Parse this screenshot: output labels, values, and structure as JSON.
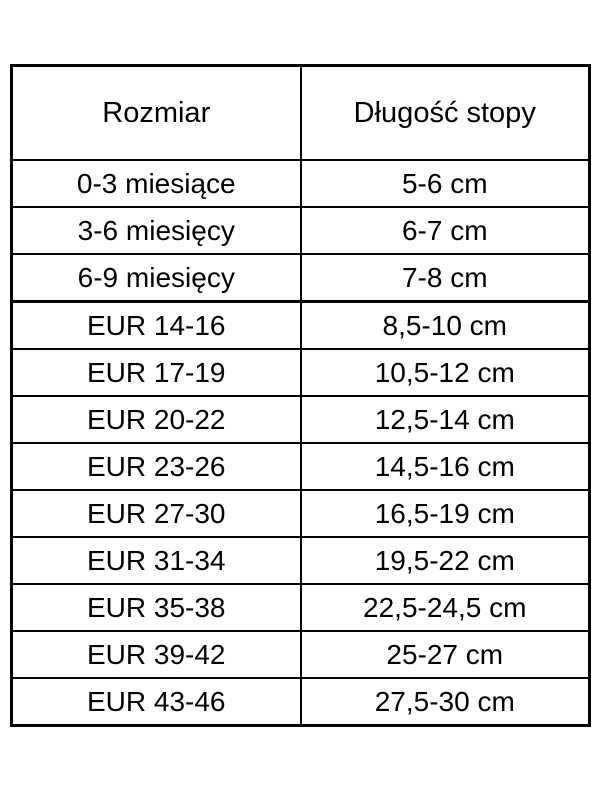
{
  "page": {
    "background": "#ffffff",
    "text_color": "#000000",
    "border_color": "#000000"
  },
  "table": {
    "headers": [
      "Rozmiar",
      "Długość stopy"
    ],
    "rows": [
      {
        "size": "0-3 miesiące",
        "length": "5-6 cm"
      },
      {
        "size": "3-6 miesięcy",
        "length": "6-7 cm"
      },
      {
        "size": "6-9 miesięcy",
        "length": "7-8 cm"
      },
      {
        "size": "EUR 14-16",
        "length": "8,5-10 cm"
      },
      {
        "size": "EUR 17-19",
        "length": "10,5-12 cm"
      },
      {
        "size": "EUR 20-22",
        "length": "12,5-14 cm"
      },
      {
        "size": "EUR 23-26",
        "length": "14,5-16 cm"
      },
      {
        "size": "EUR 27-30",
        "length": "16,5-19 cm"
      },
      {
        "size": "EUR 31-34",
        "length": "19,5-22 cm"
      },
      {
        "size": "EUR 35-38",
        "length": "22,5-24,5 cm"
      },
      {
        "size": "EUR 39-42",
        "length": "25-27 cm"
      },
      {
        "size": "EUR 43-46",
        "length": "27,5-30 cm"
      }
    ]
  },
  "chart_data": {
    "type": "table",
    "title": "",
    "columns": [
      "Rozmiar",
      "Długość stopy"
    ],
    "cells": [
      [
        "0-3 miesiące",
        "5-6 cm"
      ],
      [
        "3-6 miesięcy",
        "6-7 cm"
      ],
      [
        "6-9 miesięcy",
        "7-8 cm"
      ],
      [
        "EUR 14-16",
        "8,5-10 cm"
      ],
      [
        "EUR 17-19",
        "10,5-12 cm"
      ],
      [
        "EUR 20-22",
        "12,5-14 cm"
      ],
      [
        "EUR 23-26",
        "14,5-16 cm"
      ],
      [
        "EUR 27-30",
        "16,5-19 cm"
      ],
      [
        "EUR 31-34",
        "19,5-22 cm"
      ],
      [
        "EUR 35-38",
        "22,5-24,5 cm"
      ],
      [
        "EUR 39-42",
        "25-27 cm"
      ],
      [
        "EUR 43-46",
        "27,5-30 cm"
      ]
    ]
  }
}
